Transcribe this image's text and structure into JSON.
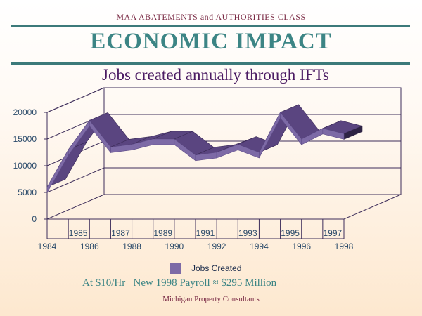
{
  "header": {
    "course": "MAA ABATEMENTS and AUTHORITIES CLASS",
    "title": "ECONOMIC IMPACT"
  },
  "chart_data": {
    "type": "area",
    "title": "Jobs created annually through IFTs",
    "categories": [
      "1984",
      "1985",
      "1986",
      "1987",
      "1988",
      "1989",
      "1990",
      "1991",
      "1992",
      "1993",
      "1994",
      "1995",
      "1996",
      "1997",
      "1998"
    ],
    "series": [
      {
        "name": "Jobs Created",
        "values": [
          6000,
          13000,
          18500,
          13500,
          14000,
          15000,
          15000,
          12000,
          12500,
          14000,
          12500,
          20000,
          15000,
          17000,
          16000
        ]
      }
    ],
    "yticks": [
      "0",
      "5000",
      "10000",
      "15000",
      "20000"
    ],
    "ylim": [
      0,
      20000
    ],
    "legend_position": "bottom",
    "colors": {
      "ribbon_front": "#7d6aa6",
      "ribbon_top": "#5a4580",
      "grid": "#3d2d5a"
    }
  },
  "annotation": "At $10/Hr   New 1998 Payroll ≈ $295 Million",
  "footer": "Michigan Property Consultants"
}
